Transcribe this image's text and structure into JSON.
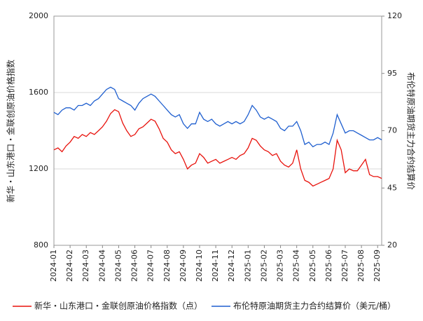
{
  "chart_data": {
    "type": "line",
    "ylabel": "新华・山东港口・金联创原油价格指数",
    "y2label": "布伦特原油期货主力合约结算价",
    "categories": [
      "2024-01",
      null,
      null,
      null,
      "2024-02",
      null,
      null,
      null,
      "2024-03",
      null,
      null,
      null,
      "2024-04",
      null,
      null,
      null,
      "2024-05",
      null,
      null,
      null,
      "2024-06",
      null,
      null,
      null,
      "2024-07",
      null,
      null,
      null,
      "2024-08",
      null,
      null,
      null,
      "2024-09",
      null,
      null,
      null,
      "2024-10",
      null,
      null,
      null,
      "2024-11",
      null,
      null,
      null,
      "2024-12",
      null,
      null,
      null,
      "2025-01",
      null,
      null,
      null,
      "2025-02",
      null,
      null,
      null,
      "2025-03",
      null,
      null,
      null,
      "2025-04",
      null,
      null,
      null,
      "2025-05",
      null,
      null,
      null,
      "2025-06",
      null,
      null,
      null,
      "2025-07",
      null,
      null,
      null,
      "2025-08",
      null,
      null,
      null,
      "2025-09",
      null
    ],
    "series": [
      {
        "name": "新华・山东港口・金联创原油价格指数（点）",
        "color": "#e8120c",
        "values": [
          1300,
          1310,
          1290,
          1320,
          1340,
          1370,
          1360,
          1380,
          1370,
          1390,
          1380,
          1400,
          1420,
          1450,
          1490,
          1510,
          1500,
          1440,
          1400,
          1370,
          1380,
          1410,
          1420,
          1440,
          1460,
          1450,
          1410,
          1360,
          1340,
          1300,
          1280,
          1290,
          1250,
          1200,
          1220,
          1230,
          1280,
          1260,
          1230,
          1240,
          1250,
          1230,
          1240,
          1250,
          1260,
          1250,
          1270,
          1280,
          1310,
          1360,
          1350,
          1320,
          1300,
          1290,
          1270,
          1280,
          1240,
          1220,
          1210,
          1230,
          1300,
          1200,
          1140,
          1130,
          1110,
          1120,
          1130,
          1140,
          1150,
          1200,
          1350,
          1300,
          1180,
          1200,
          1190,
          1190,
          1220,
          1250,
          1170,
          1160,
          1160,
          1150
        ]
      },
      {
        "name": "布伦特原油期货主力合约结算价（美元/桶）",
        "color": "#1f5fcf",
        "axis": "y2",
        "values": [
          78,
          77,
          79,
          80,
          80,
          79,
          81,
          81,
          82,
          81,
          83,
          84,
          86,
          88,
          89,
          88,
          84,
          83,
          82,
          81,
          79,
          82,
          84,
          85,
          86,
          85,
          83,
          81,
          79,
          77,
          76,
          77,
          73,
          71,
          73,
          73,
          78,
          75,
          74,
          75,
          73,
          72,
          73,
          74,
          73,
          74,
          73,
          74,
          77,
          81,
          79,
          76,
          75,
          76,
          75,
          74,
          71,
          70,
          72,
          72,
          74,
          70,
          64,
          65,
          63,
          64,
          64,
          65,
          64,
          69,
          77,
          73,
          69,
          70,
          70,
          69,
          68,
          67,
          66,
          66,
          67,
          66
        ]
      }
    ],
    "ylim": [
      800,
      2000
    ],
    "yticks": [
      800,
      1200,
      1600,
      2000
    ],
    "y2lim": [
      20,
      120
    ],
    "y2ticks": [
      20,
      45,
      70,
      95,
      120
    ],
    "grid": true
  }
}
